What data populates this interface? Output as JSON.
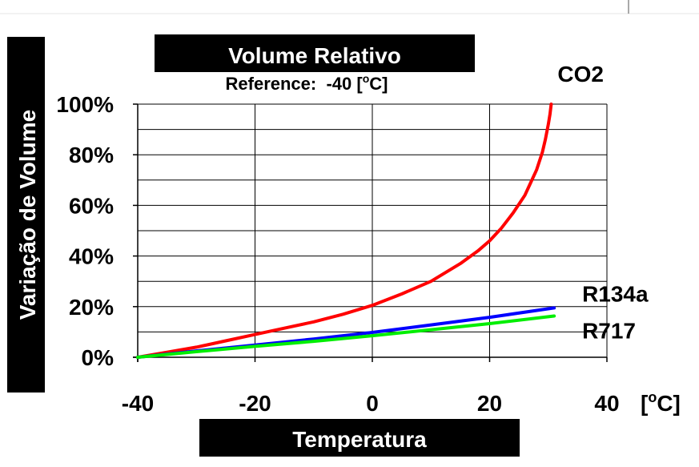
{
  "chart_data": {
    "type": "line",
    "title": "Volume Relativo",
    "subtitle_prefix": "Reference:  -40 [",
    "subtitle_degree": "o",
    "subtitle_suffix": "C]",
    "xlabel": "Temperatura",
    "ylabel": "Variação de Volume",
    "x_unit_prefix": "[",
    "x_unit_degree": "o",
    "x_unit_suffix": "C]",
    "xlim": [
      -40,
      40
    ],
    "ylim": [
      0,
      100
    ],
    "x_ticks": [
      -40,
      -20,
      0,
      20,
      40
    ],
    "x_tick_labels": [
      "-40",
      "-20",
      "0",
      "20",
      "40"
    ],
    "y_ticks": [
      0,
      20,
      40,
      60,
      80,
      100
    ],
    "y_tick_labels": [
      "0%",
      "20%",
      "40%",
      "60%",
      "80%",
      "100%"
    ],
    "y_minor_step": 10,
    "grid": true,
    "series": [
      {
        "name": "CO2",
        "color": "#ff0000",
        "x": [
          -40,
          -35,
          -30,
          -25,
          -20,
          -15,
          -10,
          -5,
          0,
          5,
          10,
          15,
          18,
          20,
          22,
          24,
          26,
          27,
          28,
          29,
          29.5,
          30,
          30.3,
          30.5
        ],
        "y": [
          0,
          2,
          4,
          6.5,
          9,
          11.5,
          14,
          17,
          20.5,
          25,
          30,
          37,
          42,
          46,
          51,
          57,
          64,
          69,
          74,
          81,
          86,
          92,
          96,
          100
        ]
      },
      {
        "name": "R134a",
        "color": "#0000ff",
        "x": [
          -40,
          -30,
          -20,
          -10,
          0,
          10,
          20,
          31
        ],
        "y": [
          0,
          2.5,
          4.8,
          7.2,
          9.8,
          12.8,
          15.8,
          19.5
        ]
      },
      {
        "name": "R717",
        "color": "#00ee00",
        "x": [
          -40,
          -30,
          -20,
          -10,
          0,
          10,
          20,
          31
        ],
        "y": [
          0,
          2.2,
          4.3,
          6.3,
          8.5,
          10.9,
          13.3,
          16.3
        ]
      }
    ]
  }
}
